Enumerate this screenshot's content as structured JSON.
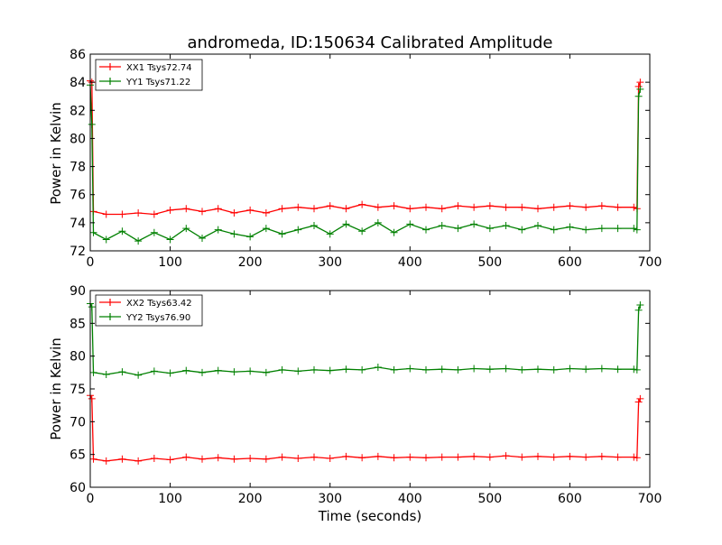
{
  "chart_data": [
    {
      "type": "line",
      "title": "andromeda, ID:150634 Calibrated Amplitude",
      "xlabel": "",
      "ylabel": "Power in Kelvin",
      "xlim": [
        0,
        700
      ],
      "ylim": [
        72,
        86
      ],
      "xticks": [
        "0",
        "100",
        "200",
        "300",
        "400",
        "500",
        "600",
        "700"
      ],
      "yticks": [
        "72",
        "74",
        "76",
        "78",
        "80",
        "82",
        "84",
        "86"
      ],
      "legend_position": "top-left",
      "series": [
        {
          "name": "XX1 Tsys72.74",
          "color": "#ff0000",
          "x": [
            0,
            2,
            4,
            20,
            40,
            60,
            80,
            100,
            120,
            140,
            160,
            180,
            200,
            220,
            240,
            260,
            280,
            300,
            320,
            340,
            360,
            380,
            400,
            420,
            440,
            460,
            480,
            500,
            520,
            540,
            560,
            580,
            600,
            620,
            640,
            660,
            680,
            684,
            686,
            688
          ],
          "y": [
            84.1,
            84.0,
            74.8,
            74.6,
            74.6,
            74.7,
            74.6,
            74.9,
            75.0,
            74.8,
            75.0,
            74.7,
            74.9,
            74.7,
            75.0,
            75.1,
            75.0,
            75.2,
            75.0,
            75.3,
            75.1,
            75.2,
            75.0,
            75.1,
            75.0,
            75.2,
            75.1,
            75.2,
            75.1,
            75.1,
            75.0,
            75.1,
            75.2,
            75.1,
            75.2,
            75.1,
            75.1,
            75.0,
            83.7,
            84.0
          ]
        },
        {
          "name": "YY1 Tsys71.22",
          "color": "#008000",
          "x": [
            0,
            2,
            4,
            20,
            40,
            60,
            80,
            100,
            120,
            140,
            160,
            180,
            200,
            220,
            240,
            260,
            280,
            300,
            320,
            340,
            360,
            380,
            400,
            420,
            440,
            460,
            480,
            500,
            520,
            540,
            560,
            580,
            600,
            620,
            640,
            660,
            680,
            684,
            686,
            688
          ],
          "y": [
            83.8,
            81.0,
            73.3,
            72.8,
            73.4,
            72.7,
            73.3,
            72.8,
            73.6,
            72.9,
            73.5,
            73.2,
            73.0,
            73.6,
            73.2,
            73.5,
            73.8,
            73.2,
            73.9,
            73.4,
            74.0,
            73.3,
            73.9,
            73.5,
            73.8,
            73.6,
            73.9,
            73.6,
            73.8,
            73.5,
            73.8,
            73.5,
            73.7,
            73.5,
            73.6,
            73.6,
            73.6,
            73.5,
            83.0,
            83.5
          ]
        }
      ]
    },
    {
      "type": "line",
      "title": "",
      "xlabel": "Time (seconds)",
      "ylabel": "Power in Kelvin",
      "xlim": [
        0,
        700
      ],
      "ylim": [
        60,
        90
      ],
      "xticks": [
        "0",
        "100",
        "200",
        "300",
        "400",
        "500",
        "600",
        "700"
      ],
      "yticks": [
        "60",
        "65",
        "70",
        "75",
        "80",
        "85",
        "90"
      ],
      "legend_position": "top-left",
      "series": [
        {
          "name": "XX2 Tsys63.42",
          "color": "#ff0000",
          "x": [
            0,
            2,
            4,
            20,
            40,
            60,
            80,
            100,
            120,
            140,
            160,
            180,
            200,
            220,
            240,
            260,
            280,
            300,
            320,
            340,
            360,
            380,
            400,
            420,
            440,
            460,
            480,
            500,
            520,
            540,
            560,
            580,
            600,
            620,
            640,
            660,
            680,
            684,
            686,
            688
          ],
          "y": [
            74.0,
            73.5,
            64.3,
            64.0,
            64.3,
            64.0,
            64.4,
            64.2,
            64.6,
            64.3,
            64.5,
            64.3,
            64.4,
            64.3,
            64.6,
            64.4,
            64.6,
            64.4,
            64.7,
            64.5,
            64.7,
            64.5,
            64.6,
            64.5,
            64.6,
            64.6,
            64.7,
            64.6,
            64.8,
            64.6,
            64.7,
            64.6,
            64.7,
            64.6,
            64.7,
            64.6,
            64.6,
            64.5,
            73.0,
            73.5
          ]
        },
        {
          "name": "YY2 Tsys76.90",
          "color": "#008000",
          "x": [
            0,
            2,
            4,
            20,
            40,
            60,
            80,
            100,
            120,
            140,
            160,
            180,
            200,
            220,
            240,
            260,
            280,
            300,
            320,
            340,
            360,
            380,
            400,
            420,
            440,
            460,
            480,
            500,
            520,
            540,
            560,
            580,
            600,
            620,
            640,
            660,
            680,
            684,
            686,
            688
          ],
          "y": [
            88.0,
            87.5,
            77.5,
            77.2,
            77.6,
            77.1,
            77.7,
            77.4,
            77.8,
            77.5,
            77.8,
            77.6,
            77.7,
            77.5,
            77.9,
            77.7,
            77.9,
            77.8,
            78.0,
            77.9,
            78.3,
            77.9,
            78.1,
            77.9,
            78.0,
            77.9,
            78.1,
            78.0,
            78.1,
            77.9,
            78.0,
            77.9,
            78.1,
            78.0,
            78.1,
            78.0,
            78.0,
            77.9,
            87.0,
            87.8
          ]
        }
      ]
    }
  ]
}
